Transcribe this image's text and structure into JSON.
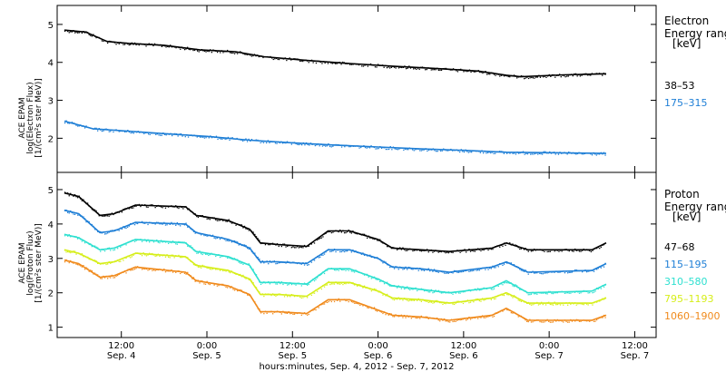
{
  "chart_data": [
    {
      "type": "scatter",
      "ylabel_lines": [
        "ACE EPAM",
        "log(Electron Flux)",
        "[1/(cm²s ster MeV)]"
      ],
      "ylim": [
        1.1,
        5.5
      ],
      "yticks": [
        2,
        3,
        4,
        5
      ],
      "legend": {
        "title_lines": [
          "Electron",
          "Energy range",
          "[keV]"
        ],
        "placement": "right"
      },
      "series": [
        {
          "name": "38–53",
          "color": "#000000",
          "x": [
            "2012-09-04 04:00",
            "2012-09-04 07:00",
            "2012-09-04 10:00",
            "2012-09-04 13:00",
            "2012-09-04 18:00",
            "2012-09-04 23:00",
            "2012-09-05 04:00",
            "2012-09-05 08:00",
            "2012-09-05 14:00",
            "2012-09-05 20:00",
            "2012-09-06 02:00",
            "2012-09-06 08:00",
            "2012-09-06 14:00",
            "2012-09-06 18:00",
            "2012-09-06 20:00",
            "2012-09-07 02:00",
            "2012-09-07 08:00"
          ],
          "values": [
            4.85,
            4.8,
            4.55,
            4.5,
            4.45,
            4.33,
            4.28,
            4.15,
            4.05,
            3.97,
            3.9,
            3.84,
            3.77,
            3.66,
            3.62,
            3.67,
            3.7
          ]
        },
        {
          "name": "175–315",
          "color": "#1f7fd6",
          "x": [
            "2012-09-04 04:00",
            "2012-09-04 08:00",
            "2012-09-04 12:00",
            "2012-09-04 18:00",
            "2012-09-05 00:00",
            "2012-09-05 06:00",
            "2012-09-05 12:00",
            "2012-09-05 18:00",
            "2012-09-06 00:00",
            "2012-09-06 06:00",
            "2012-09-06 12:00",
            "2012-09-06 18:00",
            "2012-09-07 00:00",
            "2012-09-07 08:00"
          ],
          "values": [
            2.45,
            2.25,
            2.2,
            2.12,
            2.05,
            1.95,
            1.88,
            1.82,
            1.77,
            1.72,
            1.68,
            1.63,
            1.62,
            1.6
          ]
        }
      ]
    },
    {
      "type": "scatter",
      "ylabel_lines": [
        "ACE EPAM",
        "log(Proton Flux)",
        "[1/(cm²s ster MeV)]"
      ],
      "ylim": [
        0.7,
        5.5
      ],
      "yticks": [
        1,
        2,
        3,
        4,
        5
      ],
      "legend": {
        "title_lines": [
          "Proton",
          "Energy range",
          "[keV]"
        ],
        "placement": "right"
      },
      "series": [
        {
          "name": "47–68",
          "color": "#000000",
          "x": [
            "2012-09-04 04:00",
            "2012-09-04 06:00",
            "2012-09-04 09:00",
            "2012-09-04 11:00",
            "2012-09-04 14:00",
            "2012-09-04 21:00",
            "2012-09-04 22:30",
            "2012-09-05 03:00",
            "2012-09-05 06:00",
            "2012-09-05 07:30",
            "2012-09-05 10:00",
            "2012-09-05 14:00",
            "2012-09-05 17:00",
            "2012-09-05 20:00",
            "2012-09-06 00:00",
            "2012-09-06 02:00",
            "2012-09-06 06:00",
            "2012-09-06 10:00",
            "2012-09-06 16:00",
            "2012-09-06 18:00",
            "2012-09-06 21:00",
            "2012-09-07 06:00",
            "2012-09-07 08:00"
          ],
          "values": [
            4.9,
            4.8,
            4.25,
            4.3,
            4.55,
            4.5,
            4.25,
            4.1,
            3.85,
            3.45,
            3.4,
            3.35,
            3.8,
            3.8,
            3.55,
            3.3,
            3.25,
            3.2,
            3.3,
            3.45,
            3.25,
            3.25,
            3.45
          ]
        },
        {
          "name": "115–195",
          "color": "#1f7fd6",
          "x": [
            "2012-09-04 04:00",
            "2012-09-04 06:00",
            "2012-09-04 09:00",
            "2012-09-04 11:00",
            "2012-09-04 14:00",
            "2012-09-04 21:00",
            "2012-09-04 22:30",
            "2012-09-05 03:00",
            "2012-09-05 06:00",
            "2012-09-05 07:30",
            "2012-09-05 10:00",
            "2012-09-05 14:00",
            "2012-09-05 17:00",
            "2012-09-05 20:00",
            "2012-09-06 00:00",
            "2012-09-06 02:00",
            "2012-09-06 06:00",
            "2012-09-06 10:00",
            "2012-09-06 16:00",
            "2012-09-06 18:00",
            "2012-09-06 21:00",
            "2012-09-07 06:00",
            "2012-09-07 08:00"
          ],
          "values": [
            4.4,
            4.3,
            3.75,
            3.8,
            4.05,
            4.0,
            3.75,
            3.55,
            3.3,
            2.9,
            2.9,
            2.85,
            3.25,
            3.25,
            3.0,
            2.75,
            2.7,
            2.6,
            2.75,
            2.9,
            2.6,
            2.65,
            2.85
          ]
        },
        {
          "name": "310–580",
          "color": "#2ee0d0",
          "x": [
            "2012-09-04 04:00",
            "2012-09-04 06:00",
            "2012-09-04 09:00",
            "2012-09-04 11:00",
            "2012-09-04 14:00",
            "2012-09-04 21:00",
            "2012-09-04 22:30",
            "2012-09-05 03:00",
            "2012-09-05 06:00",
            "2012-09-05 07:30",
            "2012-09-05 10:00",
            "2012-09-05 14:00",
            "2012-09-05 17:00",
            "2012-09-05 20:00",
            "2012-09-06 00:00",
            "2012-09-06 02:00",
            "2012-09-06 06:00",
            "2012-09-06 10:00",
            "2012-09-06 16:00",
            "2012-09-06 18:00",
            "2012-09-06 21:00",
            "2012-09-07 06:00",
            "2012-09-07 08:00"
          ],
          "values": [
            3.7,
            3.6,
            3.25,
            3.3,
            3.55,
            3.45,
            3.2,
            3.05,
            2.8,
            2.3,
            2.3,
            2.25,
            2.7,
            2.7,
            2.4,
            2.2,
            2.1,
            2.0,
            2.15,
            2.35,
            2.0,
            2.05,
            2.25
          ]
        },
        {
          "name": "795–1193",
          "color": "#d6ee1a",
          "x": [
            "2012-09-04 04:00",
            "2012-09-04 06:00",
            "2012-09-04 09:00",
            "2012-09-04 11:00",
            "2012-09-04 14:00",
            "2012-09-04 21:00",
            "2012-09-04 22:30",
            "2012-09-05 03:00",
            "2012-09-05 06:00",
            "2012-09-05 07:30",
            "2012-09-05 10:00",
            "2012-09-05 14:00",
            "2012-09-05 17:00",
            "2012-09-05 20:00",
            "2012-09-06 00:00",
            "2012-09-06 02:00",
            "2012-09-06 06:00",
            "2012-09-06 10:00",
            "2012-09-06 16:00",
            "2012-09-06 18:00",
            "2012-09-06 21:00",
            "2012-09-07 06:00",
            "2012-09-07 08:00"
          ],
          "values": [
            3.25,
            3.15,
            2.85,
            2.9,
            3.15,
            3.05,
            2.8,
            2.65,
            2.4,
            1.95,
            1.95,
            1.9,
            2.3,
            2.3,
            2.05,
            1.85,
            1.8,
            1.7,
            1.85,
            2.0,
            1.7,
            1.7,
            1.85
          ]
        },
        {
          "name": "1060–1900",
          "color": "#f08a1c",
          "x": [
            "2012-09-04 04:00",
            "2012-09-04 06:00",
            "2012-09-04 09:00",
            "2012-09-04 11:00",
            "2012-09-04 14:00",
            "2012-09-04 21:00",
            "2012-09-04 22:30",
            "2012-09-05 03:00",
            "2012-09-05 06:00",
            "2012-09-05 07:30",
            "2012-09-05 10:00",
            "2012-09-05 14:00",
            "2012-09-05 17:00",
            "2012-09-05 20:00",
            "2012-09-06 00:00",
            "2012-09-06 02:00",
            "2012-09-06 06:00",
            "2012-09-06 10:00",
            "2012-09-06 16:00",
            "2012-09-06 18:00",
            "2012-09-06 21:00",
            "2012-09-07 06:00",
            "2012-09-07 08:00"
          ],
          "values": [
            2.95,
            2.85,
            2.45,
            2.5,
            2.75,
            2.6,
            2.35,
            2.2,
            1.95,
            1.45,
            1.45,
            1.4,
            1.8,
            1.8,
            1.5,
            1.35,
            1.3,
            1.2,
            1.35,
            1.55,
            1.2,
            1.2,
            1.35
          ]
        }
      ]
    }
  ],
  "x_axis": {
    "xlim": [
      "2012-09-04 03:00",
      "2012-09-07 15:00"
    ],
    "ticks": [
      {
        "at": "2012-09-04 12:00",
        "time": "12:00",
        "date": "Sep. 4"
      },
      {
        "at": "2012-09-05 00:00",
        "time": "0:00",
        "date": "Sep. 5"
      },
      {
        "at": "2012-09-05 12:00",
        "time": "12:00",
        "date": "Sep. 5"
      },
      {
        "at": "2012-09-06 00:00",
        "time": "0:00",
        "date": "Sep. 6"
      },
      {
        "at": "2012-09-06 12:00",
        "time": "12:00",
        "date": "Sep. 6"
      },
      {
        "at": "2012-09-07 00:00",
        "time": "0:00",
        "date": "Sep. 7"
      },
      {
        "at": "2012-09-07 12:00",
        "time": "12:00",
        "date": "Sep. 7"
      }
    ],
    "label": "hours:minutes, Sep.  4, 2012 - Sep.  7, 2012"
  }
}
